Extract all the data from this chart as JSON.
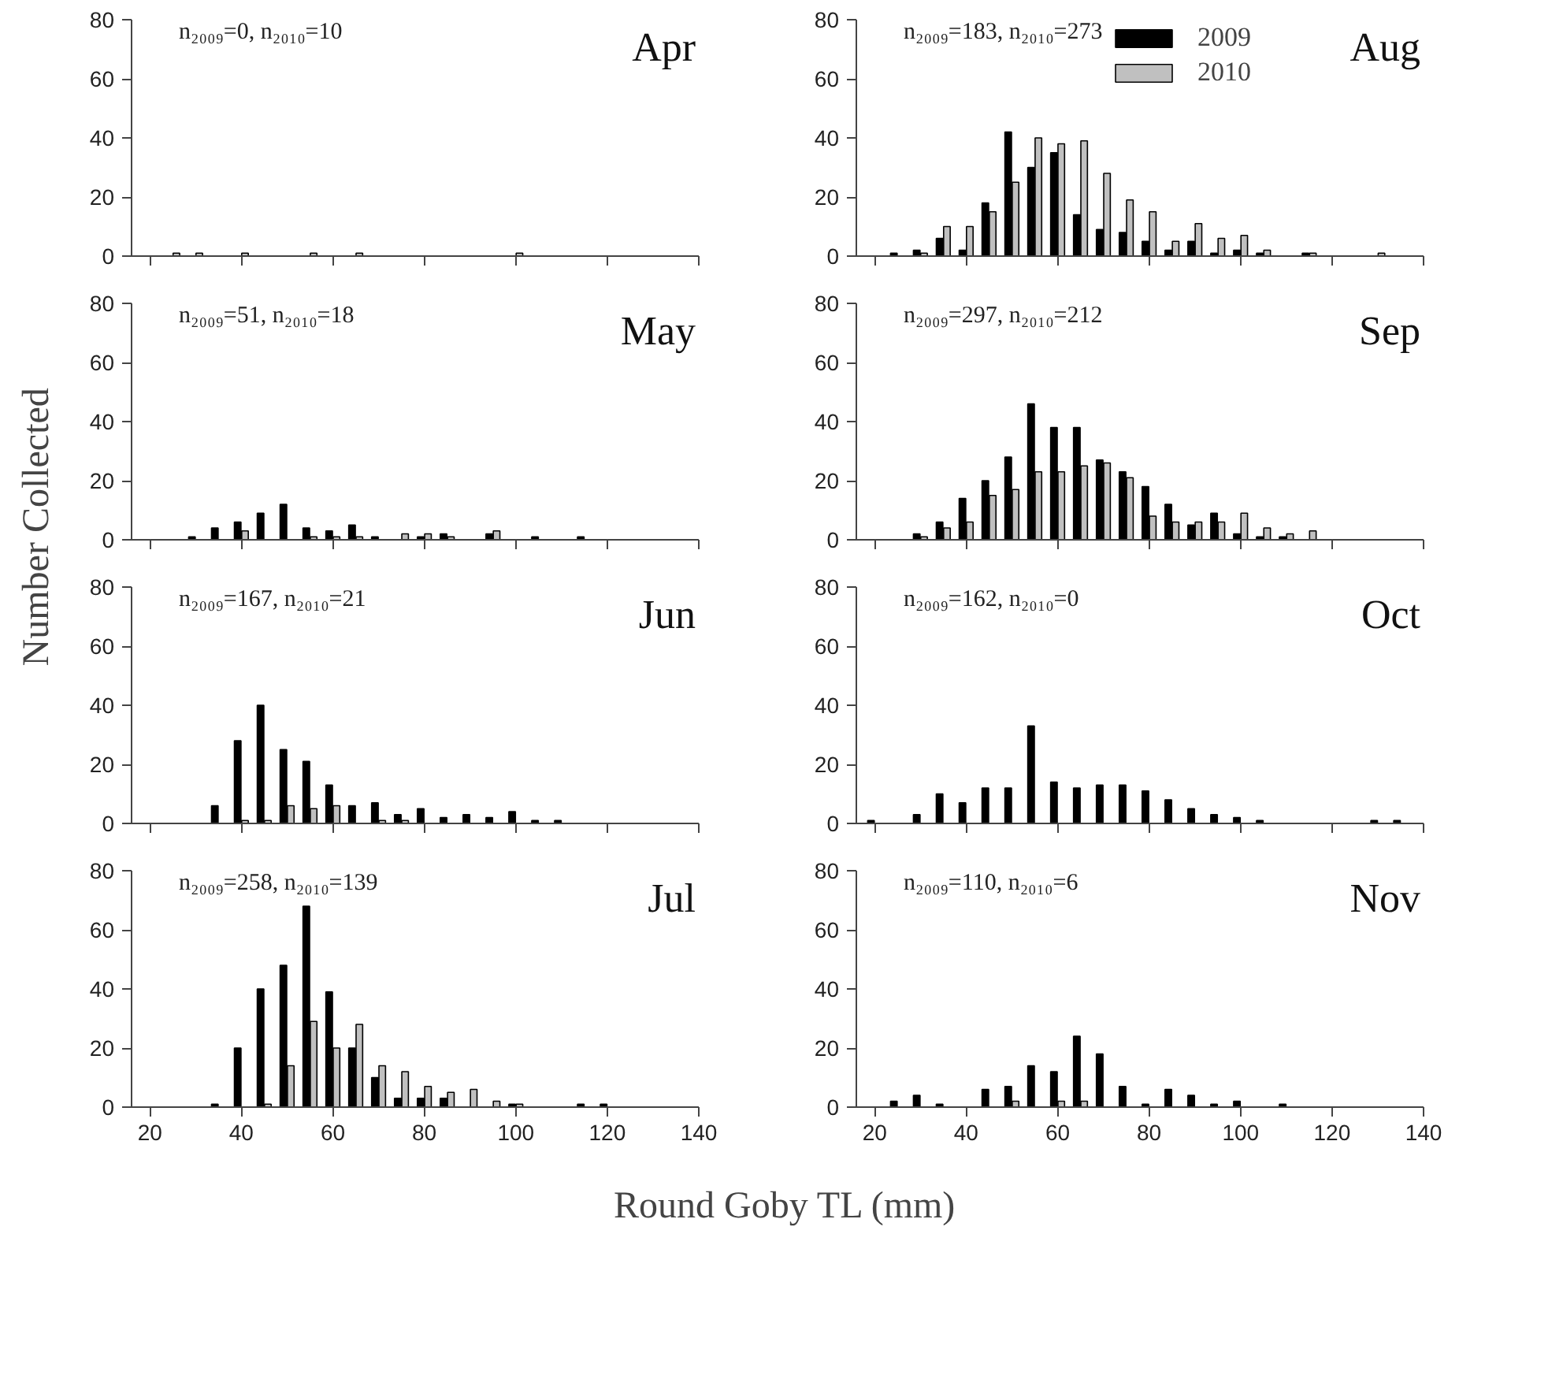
{
  "chart_data": [
    {
      "type": "bar",
      "title": "Apr",
      "annotations": [
        "n₂₀₀₉=0, n₂₀₁₀=10"
      ],
      "x": [
        25,
        30,
        35,
        40,
        45,
        50,
        55,
        60,
        65,
        70,
        75,
        80,
        85,
        90,
        95,
        100
      ],
      "xlim": [
        16,
        140
      ],
      "xticks": [
        20,
        40,
        60,
        80,
        100,
        120,
        140
      ],
      "ylim": [
        0,
        80
      ],
      "yticks": [
        0,
        20,
        40,
        60,
        80
      ],
      "tick_labels": "y",
      "series": [
        {
          "color": "#000000",
          "values": [
            null,
            null,
            null,
            null,
            null,
            null,
            null,
            null,
            null,
            null,
            null,
            null,
            null,
            null,
            null,
            null
          ]
        },
        {
          "color": "#c0c0c0",
          "values": [
            1,
            1,
            null,
            1,
            null,
            null,
            1,
            null,
            1,
            null,
            null,
            null,
            null,
            null,
            null,
            1
          ]
        }
      ]
    },
    {
      "type": "bar",
      "title": "Aug",
      "annotations": [
        "n₂₀₀₉=183, n₂₀₁₀=273"
      ],
      "legend": "top right",
      "x": [
        25,
        30,
        35,
        40,
        45,
        50,
        55,
        60,
        65,
        70,
        75,
        80,
        85,
        90,
        95,
        100,
        105,
        110,
        115,
        120,
        125,
        130
      ],
      "xlim": [
        16,
        140
      ],
      "xticks": [
        20,
        40,
        60,
        80,
        100,
        120,
        140
      ],
      "ylim": [
        0,
        80
      ],
      "yticks": [
        0,
        20,
        40,
        60,
        80
      ],
      "tick_labels": "y",
      "series": [
        {
          "name": "2009",
          "color": "#000000",
          "values": [
            1,
            2,
            6,
            2,
            18,
            42,
            30,
            35,
            14,
            9,
            8,
            5,
            2,
            5,
            1,
            2,
            1,
            null,
            1,
            null,
            null,
            null
          ]
        },
        {
          "name": "2010",
          "color": "#c0c0c0",
          "values": [
            null,
            1,
            10,
            10,
            15,
            25,
            40,
            38,
            39,
            28,
            19,
            15,
            5,
            11,
            6,
            7,
            2,
            null,
            1,
            null,
            null,
            1
          ]
        }
      ]
    },
    {
      "type": "bar",
      "title": "May",
      "annotations": [
        "n₂₀₀₉=51, n₂₀₁₀=18"
      ],
      "x": [
        30,
        35,
        40,
        45,
        50,
        55,
        60,
        65,
        70,
        75,
        80,
        85,
        90,
        95,
        100,
        105,
        110,
        115
      ],
      "xlim": [
        16,
        140
      ],
      "xticks": [
        20,
        40,
        60,
        80,
        100,
        120,
        140
      ],
      "ylim": [
        0,
        80
      ],
      "yticks": [
        0,
        20,
        40,
        60,
        80
      ],
      "tick_labels": "y",
      "series": [
        {
          "color": "#000000",
          "values": [
            1,
            4,
            6,
            9,
            12,
            4,
            3,
            5,
            1,
            null,
            1,
            2,
            null,
            2,
            null,
            1,
            null,
            1
          ]
        },
        {
          "color": "#c0c0c0",
          "values": [
            null,
            null,
            3,
            null,
            null,
            1,
            1,
            1,
            null,
            2,
            2,
            1,
            null,
            3,
            null,
            null,
            null,
            null
          ]
        }
      ]
    },
    {
      "type": "bar",
      "title": "Sep",
      "annotations": [
        "n₂₀₀₉=297, n₂₀₁₀=212"
      ],
      "x": [
        30,
        35,
        40,
        45,
        50,
        55,
        60,
        65,
        70,
        75,
        80,
        85,
        90,
        95,
        100,
        105,
        110,
        115
      ],
      "xlim": [
        16,
        140
      ],
      "xticks": [
        20,
        40,
        60,
        80,
        100,
        120,
        140
      ],
      "ylim": [
        0,
        80
      ],
      "yticks": [
        0,
        20,
        40,
        60,
        80
      ],
      "tick_labels": "y",
      "series": [
        {
          "color": "#000000",
          "values": [
            2,
            6,
            14,
            20,
            28,
            46,
            38,
            38,
            27,
            23,
            18,
            12,
            5,
            9,
            2,
            1,
            1,
            null
          ]
        },
        {
          "color": "#c0c0c0",
          "values": [
            1,
            4,
            6,
            15,
            17,
            23,
            23,
            25,
            26,
            21,
            8,
            6,
            6,
            6,
            9,
            4,
            2,
            3
          ]
        }
      ]
    },
    {
      "type": "bar",
      "title": "Jun",
      "annotations": [
        "n₂₀₀₉=167, n₂₀₁₀=21"
      ],
      "ylabel": "Number Collected",
      "x": [
        35,
        40,
        45,
        50,
        55,
        60,
        65,
        70,
        75,
        80,
        85,
        90,
        95,
        100,
        105,
        110
      ],
      "xlim": [
        16,
        140
      ],
      "xticks": [
        20,
        40,
        60,
        80,
        100,
        120,
        140
      ],
      "ylim": [
        0,
        80
      ],
      "yticks": [
        0,
        20,
        40,
        60,
        80
      ],
      "tick_labels": "y",
      "series": [
        {
          "color": "#000000",
          "values": [
            6,
            28,
            40,
            25,
            21,
            13,
            6,
            7,
            3,
            5,
            2,
            3,
            2,
            4,
            1,
            1
          ]
        },
        {
          "color": "#c0c0c0",
          "values": [
            null,
            1,
            1,
            6,
            5,
            6,
            null,
            1,
            1,
            null,
            null,
            null,
            null,
            null,
            null,
            null
          ]
        }
      ]
    },
    {
      "type": "bar",
      "title": "Oct",
      "annotations": [
        "n₂₀₀₉=162, n₂₀₁₀=0"
      ],
      "x": [
        20,
        25,
        30,
        35,
        40,
        45,
        50,
        55,
        60,
        65,
        70,
        75,
        80,
        85,
        90,
        95,
        100,
        105,
        110,
        115,
        120,
        125,
        130,
        135
      ],
      "xlim": [
        16,
        140
      ],
      "xticks": [
        20,
        40,
        60,
        80,
        100,
        120,
        140
      ],
      "ylim": [
        0,
        80
      ],
      "yticks": [
        0,
        20,
        40,
        60,
        80
      ],
      "tick_labels": "y",
      "series": [
        {
          "color": "#000000",
          "values": [
            1,
            null,
            3,
            10,
            7,
            12,
            12,
            33,
            14,
            12,
            13,
            13,
            11,
            8,
            5,
            3,
            2,
            1,
            null,
            null,
            null,
            null,
            1,
            1
          ]
        },
        {
          "color": "#c0c0c0",
          "values": [
            null,
            null,
            null,
            null,
            null,
            null,
            null,
            null,
            null,
            null,
            null,
            null,
            null,
            null,
            null,
            null,
            null,
            null,
            null,
            null,
            null,
            null,
            null,
            null
          ]
        }
      ]
    },
    {
      "type": "bar",
      "title": "Jul",
      "annotations": [
        "n₂₀₀₉=258, n₂₀₁₀=139"
      ],
      "xlabel": "Round Goby TL (mm)",
      "x": [
        35,
        40,
        45,
        50,
        55,
        60,
        65,
        70,
        75,
        80,
        85,
        90,
        95,
        100,
        105,
        110,
        115,
        120
      ],
      "xlim": [
        16,
        140
      ],
      "xticks": [
        20,
        40,
        60,
        80,
        100,
        120,
        140
      ],
      "ylim": [
        0,
        80
      ],
      "yticks": [
        0,
        20,
        40,
        60,
        80
      ],
      "series": [
        {
          "color": "#000000",
          "values": [
            1,
            20,
            40,
            48,
            68,
            39,
            20,
            10,
            3,
            3,
            3,
            null,
            null,
            1,
            null,
            null,
            1,
            1
          ]
        },
        {
          "color": "#c0c0c0",
          "values": [
            null,
            null,
            1,
            14,
            29,
            20,
            28,
            14,
            12,
            7,
            5,
            6,
            2,
            1,
            null,
            null,
            null,
            null
          ]
        }
      ]
    },
    {
      "type": "bar",
      "title": "Nov",
      "annotations": [
        "n₂₀₀₉=110, n₂₀₁₀=6"
      ],
      "x": [
        25,
        30,
        35,
        40,
        45,
        50,
        55,
        60,
        65,
        70,
        75,
        80,
        85,
        90,
        95,
        100,
        105,
        110
      ],
      "xlim": [
        16,
        140
      ],
      "xticks": [
        20,
        40,
        60,
        80,
        100,
        120,
        140
      ],
      "ylim": [
        0,
        80
      ],
      "yticks": [
        0,
        20,
        40,
        60,
        80
      ],
      "series": [
        {
          "color": "#000000",
          "values": [
            2,
            4,
            1,
            null,
            6,
            7,
            14,
            12,
            24,
            18,
            7,
            1,
            6,
            4,
            1,
            2,
            null,
            1
          ]
        },
        {
          "color": "#c0c0c0",
          "values": [
            null,
            null,
            null,
            null,
            null,
            2,
            null,
            2,
            2,
            null,
            null,
            null,
            null,
            null,
            null,
            null,
            null,
            null
          ]
        }
      ]
    }
  ]
}
